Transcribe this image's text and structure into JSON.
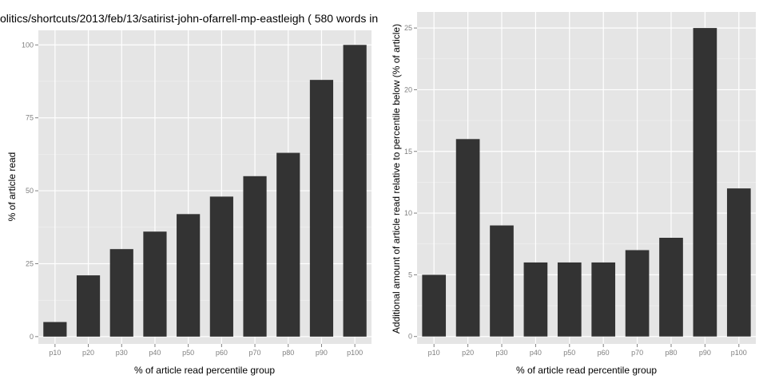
{
  "chart_data": [
    {
      "type": "bar",
      "title": "olitics/shortcuts/2013/feb/13/satirist-john-ofarrell-mp-eastleigh ( 580 words in",
      "xlabel": "% of article read percentile group",
      "ylabel": "% of article read",
      "categories": [
        "p10",
        "p20",
        "p30",
        "p40",
        "p50",
        "p60",
        "p70",
        "p80",
        "p90",
        "p100"
      ],
      "values": [
        5,
        21,
        30,
        36,
        42,
        48,
        55,
        63,
        88,
        100
      ],
      "ylim": [
        -2.5,
        105
      ],
      "yticks": [
        0,
        25,
        50,
        75,
        100
      ],
      "grid": true,
      "colors": {
        "bar": "#333333",
        "panel": "#e5e5e5",
        "grid_major": "#ffffff",
        "grid_minor": "#f2f2f2"
      }
    },
    {
      "type": "bar",
      "title": "",
      "xlabel": "% of article read percentile group",
      "ylabel": "Additional amount of article read relative to percentile below (% of article)",
      "categories": [
        "p10",
        "p20",
        "p30",
        "p40",
        "p50",
        "p60",
        "p70",
        "p80",
        "p90",
        "p100"
      ],
      "values": [
        5,
        16,
        9,
        6,
        6,
        6,
        7,
        8,
        25,
        12
      ],
      "ylim": [
        -0.6,
        26.3
      ],
      "yticks": [
        0,
        5,
        10,
        15,
        20,
        25
      ],
      "grid": true,
      "colors": {
        "bar": "#333333",
        "panel": "#e5e5e5",
        "grid_major": "#ffffff",
        "grid_minor": "#f2f2f2"
      }
    }
  ]
}
